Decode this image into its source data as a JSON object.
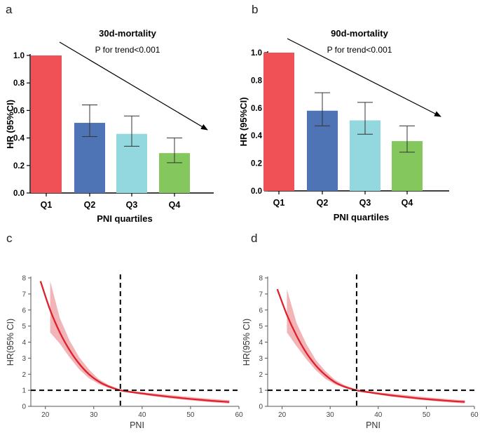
{
  "panel_labels": [
    "a",
    "b",
    "c",
    "d"
  ],
  "colors": {
    "q1": "#ef5157",
    "q2": "#4f74b6",
    "q3": "#93d7df",
    "q4": "#84c75d",
    "curve": "#e0202a",
    "band": "#f1a7ab"
  },
  "chart_data": [
    {
      "id": "a",
      "type": "bar",
      "title": "30d-mortality",
      "annotation": "P for trend<0.001",
      "categories": [
        "Q1",
        "Q2",
        "Q3",
        "Q4"
      ],
      "values": [
        1.0,
        0.51,
        0.43,
        0.29
      ],
      "ci_low": [
        1.0,
        0.41,
        0.34,
        0.22
      ],
      "ci_high": [
        1.0,
        0.64,
        0.56,
        0.4
      ],
      "xlabel": "PNI quartiles",
      "ylabel": "HR (95%CI)",
      "ylim": [
        0,
        1.0
      ],
      "yticks": [
        "0.0",
        "0.2",
        "0.4",
        "0.6",
        "0.8",
        "1.0"
      ]
    },
    {
      "id": "b",
      "type": "bar",
      "title": "90d-mortality",
      "annotation": "P for trend<0.001",
      "categories": [
        "Q1",
        "Q2",
        "Q3",
        "Q4"
      ],
      "values": [
        1.0,
        0.58,
        0.51,
        0.36
      ],
      "ci_low": [
        1.0,
        0.47,
        0.41,
        0.28
      ],
      "ci_high": [
        1.0,
        0.71,
        0.64,
        0.47
      ],
      "xlabel": "PNI quartiles",
      "ylabel": "HR (95%CI)",
      "ylim": [
        0,
        1.0
      ],
      "yticks": [
        "0.0",
        "0.2",
        "0.4",
        "0.6",
        "0.8",
        "1.0"
      ]
    },
    {
      "id": "c",
      "type": "line",
      "xlabel": "PNI",
      "ylabel": "HR(95% CI)",
      "xlim": [
        17,
        60
      ],
      "ylim": [
        0,
        8
      ],
      "xticks": [
        "20",
        "30",
        "40",
        "50",
        "60"
      ],
      "yticks": [
        "0",
        "1",
        "2",
        "3",
        "4",
        "5",
        "6",
        "7",
        "8"
      ],
      "reference_x": 35.5,
      "reference_y": 1,
      "x": [
        19,
        21,
        23,
        25,
        27,
        29,
        31,
        33,
        35.5,
        38,
        41,
        44,
        47,
        50,
        53,
        56,
        58
      ],
      "y": [
        7.8,
        6.0,
        4.6,
        3.5,
        2.65,
        2.0,
        1.55,
        1.25,
        1.0,
        0.88,
        0.76,
        0.65,
        0.55,
        0.46,
        0.38,
        0.31,
        0.27
      ],
      "lower": [
        null,
        4.6,
        3.9,
        3.05,
        2.3,
        1.75,
        1.4,
        1.15,
        0.95,
        0.82,
        0.68,
        0.56,
        0.46,
        0.37,
        0.29,
        0.22,
        0.17
      ],
      "upper": [
        null,
        7.8,
        5.5,
        4.1,
        3.05,
        2.3,
        1.7,
        1.35,
        1.05,
        0.95,
        0.85,
        0.76,
        0.67,
        0.58,
        0.5,
        0.43,
        0.39
      ]
    },
    {
      "id": "d",
      "type": "line",
      "xlabel": "PNI",
      "ylabel": "HR(95% CI)",
      "xlim": [
        17,
        60
      ],
      "ylim": [
        0,
        8
      ],
      "xticks": [
        "20",
        "30",
        "40",
        "50",
        "60"
      ],
      "yticks": [
        "0",
        "1",
        "2",
        "3",
        "4",
        "5",
        "6",
        "7",
        "8"
      ],
      "reference_x": 35.5,
      "reference_y": 1,
      "x": [
        19,
        21,
        23,
        25,
        27,
        29,
        31,
        33,
        35.5,
        38,
        41,
        44,
        47,
        50,
        53,
        56,
        58
      ],
      "y": [
        7.3,
        5.7,
        4.4,
        3.35,
        2.55,
        1.95,
        1.5,
        1.22,
        1.0,
        0.88,
        0.75,
        0.64,
        0.54,
        0.45,
        0.38,
        0.31,
        0.28
      ],
      "lower": [
        null,
        4.6,
        3.75,
        2.95,
        2.25,
        1.72,
        1.37,
        1.14,
        0.95,
        0.82,
        0.68,
        0.56,
        0.46,
        0.37,
        0.29,
        0.22,
        0.18
      ],
      "upper": [
        null,
        7.3,
        5.2,
        3.9,
        2.9,
        2.2,
        1.65,
        1.32,
        1.05,
        0.95,
        0.84,
        0.75,
        0.66,
        0.57,
        0.49,
        0.42,
        0.38
      ]
    }
  ]
}
